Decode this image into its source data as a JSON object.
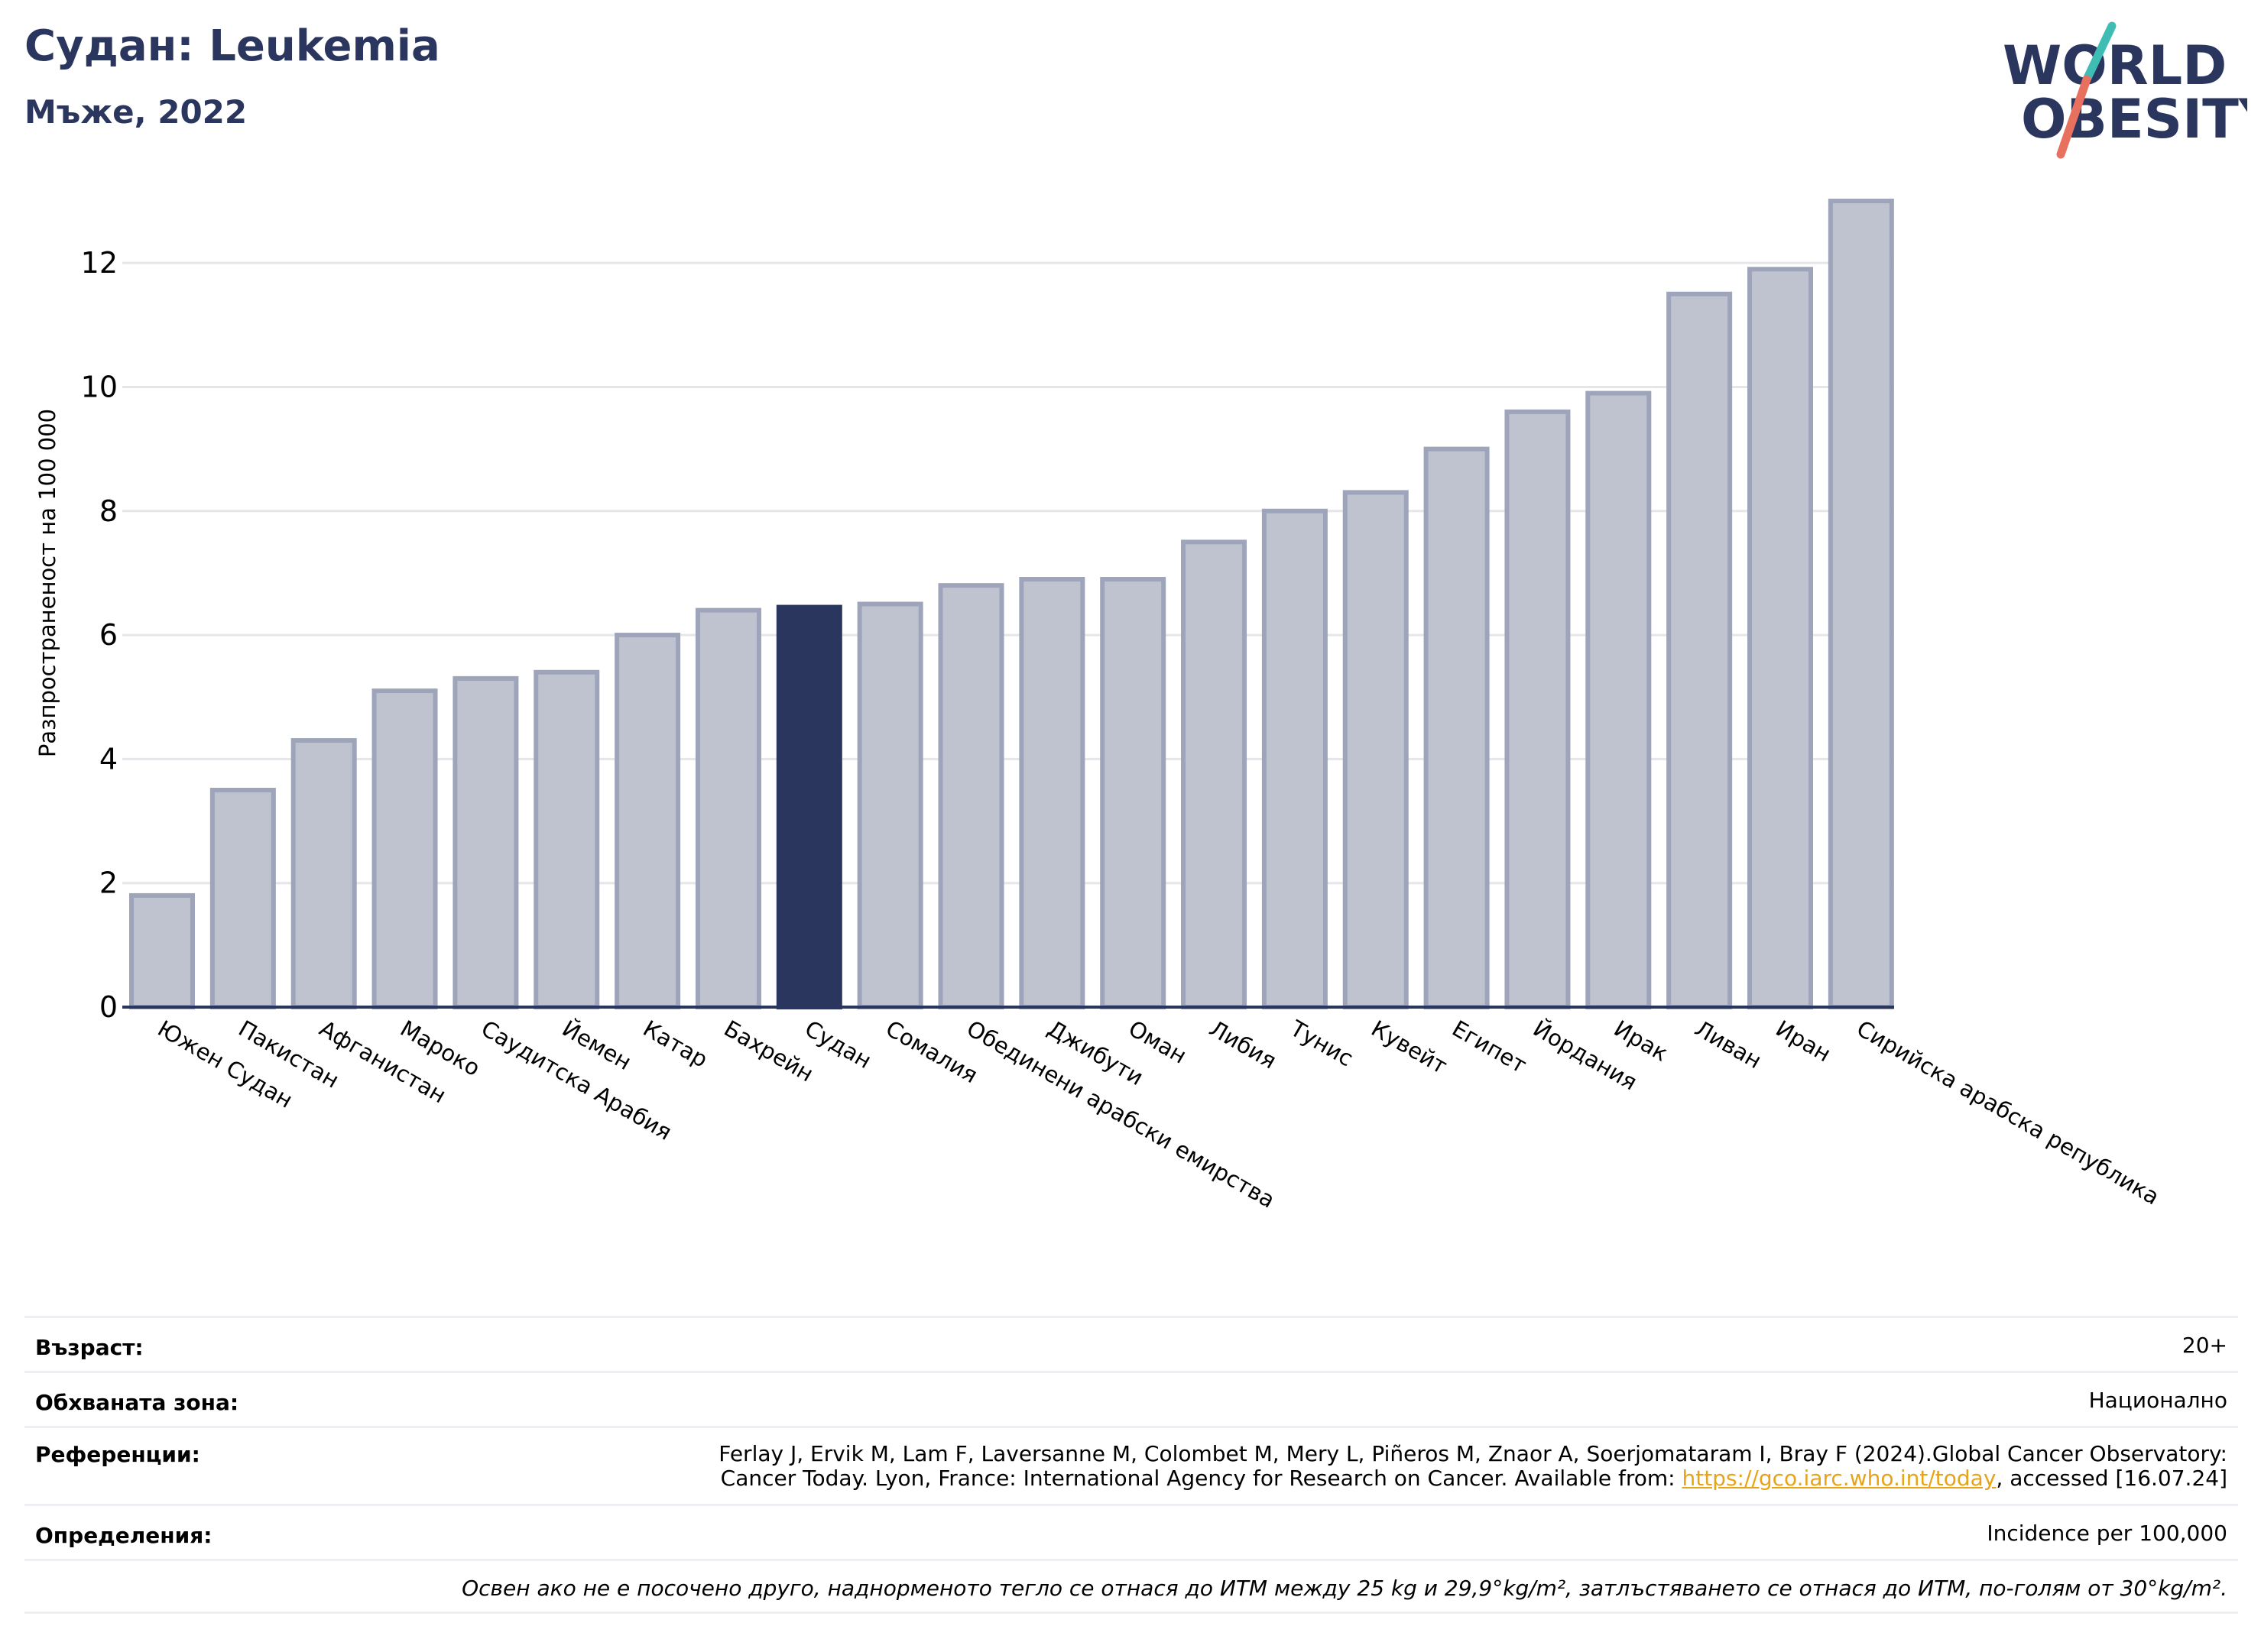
{
  "header": {
    "title": "Судан: Leukemia",
    "subtitle": "Мъже, 2022"
  },
  "logo": {
    "line1": "WORLD",
    "line2": "OBESITY"
  },
  "chart_data": {
    "type": "bar",
    "title": "Судан: Leukemia",
    "subtitle": "Мъже, 2022",
    "ylabel": "Разпространеност  на 100 000",
    "xlabel": "",
    "ylim": [
      0,
      13.5
    ],
    "yticks": [
      0,
      2,
      4,
      6,
      8,
      10,
      12
    ],
    "grid": true,
    "highlight": "Судан",
    "colors": {
      "bar": "#bfc3d0",
      "bar_edge": "#9ea4ba",
      "highlight": "#2b365e",
      "grid": "#e6e6ea",
      "axis": "#2b365e"
    },
    "categories": [
      "Южен Судан",
      "Пакистан",
      "Афганистан",
      "Мароко",
      "Саудитска Арабия",
      "Йемен",
      "Катар",
      "Бахрейн",
      "Судан",
      "Сомалия",
      "Обединени арабски емирства",
      "Джибути",
      "Оман",
      "Либия",
      "Тунис",
      "Кувейт",
      "Египет",
      "Йордания",
      "Ирак",
      "Ливан",
      "Иран",
      "Сирийска арабска република"
    ],
    "values": [
      1.8,
      3.5,
      4.3,
      5.1,
      5.3,
      5.4,
      6.0,
      6.4,
      6.45,
      6.5,
      6.8,
      6.9,
      6.9,
      7.5,
      8.0,
      8.3,
      9.0,
      9.6,
      9.9,
      11.5,
      11.9,
      13.0
    ]
  },
  "info": {
    "age_label": "Възраст:",
    "age_value": "20+",
    "area_label": "Обхваната зона:",
    "area_value": "Национално",
    "refs_label": "Референции:",
    "refs_line1": "Ferlay J, Ervik M, Lam F, Laversanne M, Colombet M, Mery L, Piñeros M, Znaor A, Soerjomataram I, Bray F (2024).Global Cancer Observatory:",
    "refs_line2_pre": "Cancer Today. Lyon, France: International Agency for Research on Cancer. Available from: ",
    "refs_link": "https://gco.iarc.who.int/today",
    "refs_line2_post": ", accessed [16.07.24]",
    "defs_label": "Определения:",
    "defs_value": "Incidence per 100,000",
    "note": "Освен ако не е посочено друго, наднорменото тегло се отнася до ИТМ между 25 kg и 29,9°kg/m², затлъстяването се отнася до ИТМ, по-голям от 30°kg/m²."
  }
}
